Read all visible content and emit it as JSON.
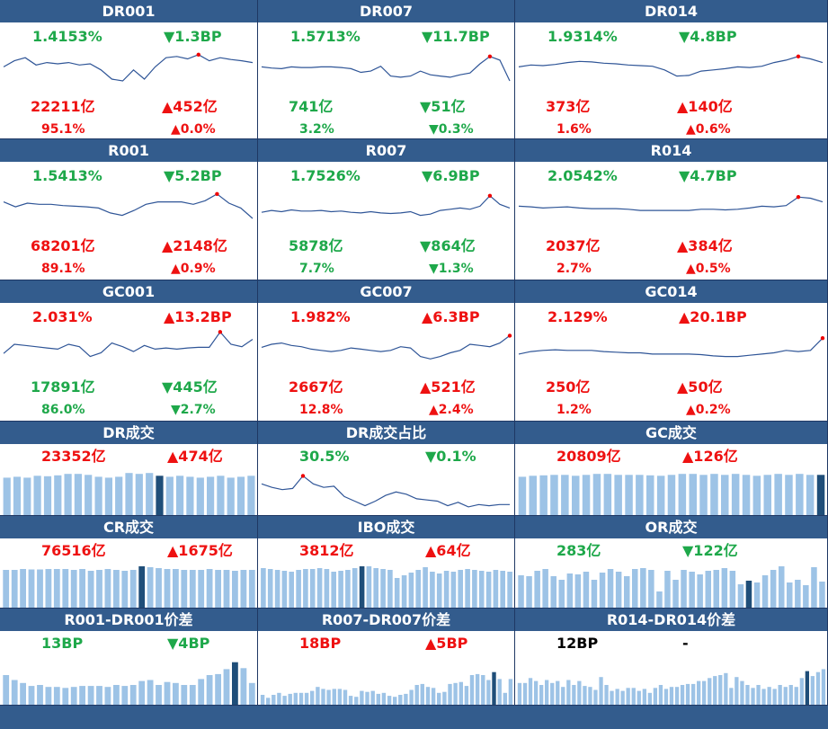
{
  "colors": {
    "header": "#335c8d",
    "line": "#2f5597",
    "bar": "#9dc3e6",
    "bar_highlight": "#1f4e79",
    "up": "#ee1111",
    "down": "#1ea84a"
  },
  "panels": [
    {
      "title": "DR001",
      "kind": "rate",
      "rate": "1.4153%",
      "rate_color": "g",
      "change": "▼1.3BP",
      "change_color": "g",
      "volume": "22211亿",
      "volume_color": "r",
      "vol_change": "▲452亿",
      "vol_change_color": "r",
      "share": "95.1%",
      "share_color": "r",
      "share_change": "▲0.0%",
      "share_change_color": "r",
      "series": [
        45,
        55,
        60,
        48,
        52,
        50,
        52,
        48,
        50,
        40,
        25,
        22,
        40,
        25,
        45,
        60,
        62,
        58,
        65,
        55,
        60,
        57,
        55,
        52
      ],
      "marker": 18
    },
    {
      "title": "DR007",
      "kind": "rate",
      "rate": "1.5713%",
      "rate_color": "g",
      "change": "▼11.7BP",
      "change_color": "g",
      "volume": "741亿",
      "volume_color": "g",
      "vol_change": "▼51亿",
      "vol_change_color": "g",
      "share": "3.2%",
      "share_color": "g",
      "share_change": "▼0.3%",
      "share_change_color": "g",
      "series": [
        45,
        43,
        42,
        45,
        44,
        44,
        45,
        45,
        44,
        42,
        36,
        38,
        46,
        30,
        28,
        30,
        38,
        32,
        30,
        28,
        32,
        35,
        50,
        62,
        56,
        22
      ],
      "marker": 23
    },
    {
      "title": "DR014",
      "kind": "rate",
      "rate": "1.9314%",
      "rate_color": "g",
      "change": "▼4.8BP",
      "change_color": "g",
      "volume": "373亿",
      "volume_color": "r",
      "vol_change": "▲140亿",
      "vol_change_color": "r",
      "share": "1.6%",
      "share_color": "r",
      "share_change": "▲0.6%",
      "share_change_color": "r",
      "series": [
        45,
        48,
        47,
        49,
        52,
        54,
        53,
        51,
        50,
        48,
        47,
        46,
        40,
        30,
        31,
        38,
        40,
        42,
        45,
        44,
        46,
        52,
        56,
        62,
        58,
        52
      ],
      "marker": 23
    },
    {
      "title": "R001",
      "kind": "rate",
      "rate": "1.5413%",
      "rate_color": "g",
      "change": "▼5.2BP",
      "change_color": "g",
      "volume": "68201亿",
      "volume_color": "r",
      "vol_change": "▲2148亿",
      "vol_change_color": "r",
      "share": "89.1%",
      "share_color": "r",
      "share_change": "▲0.9%",
      "share_change_color": "r",
      "series": [
        52,
        44,
        50,
        48,
        48,
        46,
        45,
        44,
        42,
        34,
        30,
        38,
        48,
        52,
        52,
        52,
        48,
        54,
        65,
        50,
        42,
        25
      ],
      "marker": 18
    },
    {
      "title": "R007",
      "kind": "rate",
      "rate": "1.7526%",
      "rate_color": "g",
      "change": "▼6.9BP",
      "change_color": "g",
      "volume": "5878亿",
      "volume_color": "g",
      "vol_change": "▼864亿",
      "vol_change_color": "g",
      "share": "7.7%",
      "share_color": "g",
      "share_change": "▼1.3%",
      "share_change_color": "g",
      "series": [
        35,
        38,
        36,
        39,
        37,
        37,
        38,
        36,
        37,
        35,
        34,
        36,
        34,
        33,
        34,
        36,
        30,
        32,
        38,
        40,
        42,
        40,
        45,
        62,
        48,
        42
      ],
      "marker": 23
    },
    {
      "title": "R014",
      "kind": "rate",
      "rate": "2.0542%",
      "rate_color": "g",
      "change": "▼4.7BP",
      "change_color": "g",
      "volume": "2037亿",
      "volume_color": "r",
      "vol_change": "▲384亿",
      "vol_change_color": "r",
      "share": "2.7%",
      "share_color": "r",
      "share_change": "▲0.5%",
      "share_change_color": "r",
      "series": [
        45,
        44,
        42,
        43,
        44,
        42,
        41,
        41,
        41,
        40,
        38,
        38,
        38,
        38,
        38,
        40,
        40,
        39,
        40,
        42,
        45,
        44,
        46,
        60,
        58,
        52
      ],
      "marker": 23
    },
    {
      "title": "GC001",
      "kind": "rate",
      "rate": "2.031%",
      "rate_color": "r",
      "change": "▲13.2BP",
      "change_color": "r",
      "volume": "17891亿",
      "volume_color": "g",
      "vol_change": "▼445亿",
      "vol_change_color": "g",
      "share": "86.0%",
      "share_color": "g",
      "share_change": "▼2.7%",
      "share_change_color": "g",
      "series": [
        35,
        50,
        48,
        46,
        44,
        42,
        50,
        46,
        30,
        36,
        52,
        46,
        38,
        48,
        42,
        44,
        42,
        44,
        45,
        45,
        70,
        50,
        46,
        58
      ],
      "marker": 20
    },
    {
      "title": "GC007",
      "kind": "rate",
      "rate": "1.982%",
      "rate_color": "r",
      "change": "▲6.3BP",
      "change_color": "r",
      "volume": "2667亿",
      "volume_color": "r",
      "vol_change": "▲521亿",
      "vol_change_color": "r",
      "share": "12.8%",
      "share_color": "r",
      "share_change": "▲2.4%",
      "share_change_color": "r",
      "series": [
        45,
        50,
        52,
        48,
        46,
        42,
        40,
        38,
        40,
        44,
        42,
        40,
        38,
        40,
        46,
        44,
        30,
        26,
        30,
        36,
        40,
        50,
        48,
        46,
        52,
        64
      ],
      "marker": 25
    },
    {
      "title": "GC014",
      "kind": "rate",
      "rate": "2.129%",
      "rate_color": "r",
      "change": "▲20.1BP",
      "change_color": "r",
      "volume": "250亿",
      "volume_color": "r",
      "vol_change": "▲50亿",
      "vol_change_color": "r",
      "share": "1.2%",
      "share_color": "r",
      "share_change": "▲0.2%",
      "share_change_color": "r",
      "series": [
        34,
        38,
        40,
        41,
        40,
        40,
        40,
        38,
        37,
        36,
        36,
        34,
        34,
        34,
        34,
        33,
        31,
        30,
        30,
        32,
        34,
        36,
        40,
        38,
        40,
        60
      ],
      "marker": 25
    },
    {
      "title": "DR成交",
      "kind": "bar",
      "left": "23352亿",
      "left_color": "r",
      "right": "▲474亿",
      "right_color": "r",
      "bars": [
        80,
        82,
        80,
        84,
        83,
        85,
        88,
        88,
        86,
        82,
        80,
        82,
        90,
        88,
        90,
        84,
        82,
        84,
        82,
        80,
        82,
        84,
        80,
        82,
        84
      ],
      "highlight": 15
    },
    {
      "title": "DR成交占比",
      "kind": "rate_line",
      "left": "30.5%",
      "left_color": "g",
      "right": "▼0.1%",
      "right_color": "g",
      "series": [
        48,
        42,
        38,
        40,
        62,
        48,
        42,
        44,
        26,
        18,
        10,
        18,
        28,
        34,
        30,
        22,
        20,
        18,
        10,
        16,
        8,
        12,
        10,
        12,
        12
      ],
      "marker": 4
    },
    {
      "title": "GC成交",
      "kind": "bar",
      "left": "20809亿",
      "left_color": "r",
      "right": "▲126亿",
      "right_color": "r",
      "bars": [
        82,
        84,
        85,
        86,
        86,
        84,
        86,
        88,
        88,
        86,
        86,
        86,
        85,
        84,
        86,
        88,
        88,
        86,
        88,
        86,
        88,
        86,
        84,
        86,
        88,
        86,
        88,
        86,
        86
      ],
      "highlight": 28
    },
    {
      "title": "CR成交",
      "kind": "bar",
      "left": "76516亿",
      "left_color": "r",
      "right": "▲1675亿",
      "right_color": "r",
      "bars": [
        84,
        84,
        86,
        85,
        85,
        86,
        86,
        86,
        84,
        86,
        82,
        84,
        86,
        84,
        82,
        84,
        92,
        90,
        88,
        86,
        86,
        84,
        84,
        84,
        86,
        84,
        84,
        82,
        84,
        84
      ],
      "highlight": 16
    },
    {
      "title": "IBO成交",
      "kind": "bar",
      "left": "3812亿",
      "left_color": "r",
      "right": "▲64亿",
      "right_color": "r",
      "bars": [
        88,
        86,
        84,
        82,
        80,
        84,
        86,
        86,
        88,
        86,
        80,
        82,
        84,
        88,
        92,
        92,
        88,
        86,
        84,
        66,
        72,
        78,
        84,
        90,
        80,
        76,
        82,
        80,
        84,
        86,
        84,
        82,
        80,
        84,
        82,
        80
      ],
      "highlight": 14
    },
    {
      "title": "OR成交",
      "kind": "bar",
      "left": "283亿",
      "left_color": "g",
      "right": "▼122亿",
      "right_color": "g",
      "bars": [
        72,
        70,
        82,
        86,
        70,
        62,
        76,
        74,
        80,
        62,
        78,
        86,
        80,
        70,
        86,
        88,
        84,
        36,
        82,
        62,
        84,
        80,
        74,
        82,
        84,
        88,
        82,
        52,
        60,
        56,
        72,
        84,
        92,
        56,
        62,
        50,
        90,
        58
      ],
      "highlight": 28
    },
    {
      "title": "R001-DR001价差",
      "kind": "bar",
      "left": "13BP",
      "left_color": "g",
      "right": "▼4BP",
      "right_color": "g",
      "bars": [
        60,
        50,
        44,
        38,
        40,
        36,
        36,
        34,
        36,
        38,
        38,
        38,
        36,
        40,
        38,
        40,
        48,
        50,
        40,
        46,
        44,
        40,
        40,
        52,
        60,
        62,
        72,
        86,
        74,
        44
      ],
      "highlight": 27
    },
    {
      "title": "R007-DR007价差",
      "kind": "bar",
      "left": "18BP",
      "left_color": "r",
      "right": "▲5BP",
      "right_color": "r",
      "bars": [
        20,
        14,
        20,
        24,
        18,
        22,
        24,
        24,
        24,
        28,
        36,
        32,
        30,
        32,
        32,
        30,
        18,
        16,
        28,
        26,
        28,
        22,
        24,
        18,
        16,
        20,
        22,
        30,
        40,
        42,
        36,
        34,
        24,
        26,
        42,
        44,
        46,
        38,
        60,
        62,
        60,
        50,
        66,
        52,
        24,
        52
      ],
      "highlight": 42
    },
    {
      "title": "R014-DR014价差",
      "kind": "bar",
      "left": "12BP",
      "left_color": "k",
      "right": "-",
      "right_color": "k",
      "bars": [
        44,
        44,
        54,
        48,
        40,
        50,
        44,
        48,
        36,
        50,
        40,
        48,
        38,
        36,
        30,
        56,
        40,
        28,
        32,
        28,
        34,
        34,
        28,
        32,
        24,
        34,
        40,
        32,
        36,
        36,
        40,
        42,
        42,
        48,
        48,
        54,
        58,
        60,
        64,
        34,
        56,
        48,
        40,
        34,
        40,
        32,
        36,
        32,
        40,
        36,
        40,
        36,
        54,
        68,
        58,
        66,
        72
      ],
      "highlight": 53
    }
  ]
}
